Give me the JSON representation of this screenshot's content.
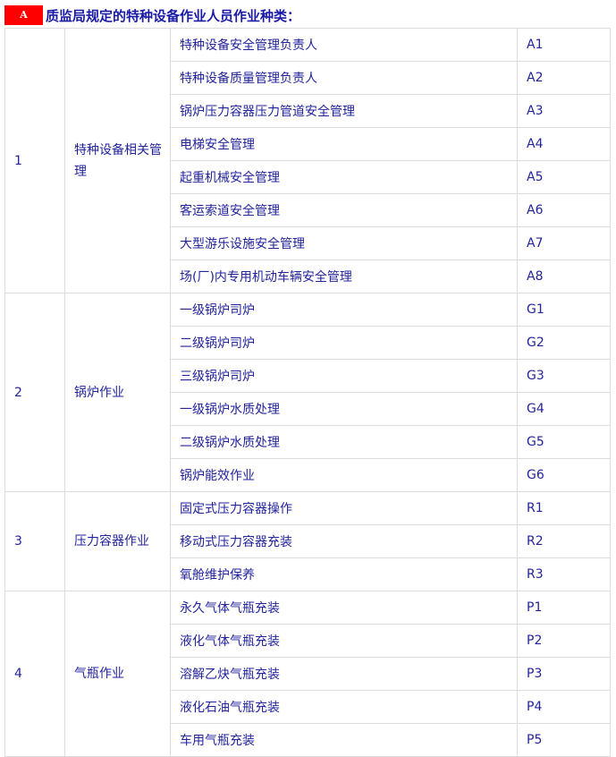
{
  "heading": {
    "badge": "A",
    "title": "质监局规定的特种设备作业人员作业种类：",
    "badge_color": "#ff0000"
  },
  "groups": [
    {
      "no": "1",
      "category": "特种设备相关管理",
      "items": [
        {
          "name": "特种设备安全管理负责人",
          "code": "A1"
        },
        {
          "name": "特种设备质量管理负责人",
          "code": "A2"
        },
        {
          "name": "锅炉压力容器压力管道安全管理",
          "code": "A3"
        },
        {
          "name": "电梯安全管理",
          "code": "A4"
        },
        {
          "name": "起重机械安全管理",
          "code": "A5"
        },
        {
          "name": "客运索道安全管理",
          "code": "A6"
        },
        {
          "name": "大型游乐设施安全管理",
          "code": "A7"
        },
        {
          "name": "场(厂)内专用机动车辆安全管理",
          "code": "A8"
        }
      ]
    },
    {
      "no": "2",
      "category": "锅炉作业",
      "items": [
        {
          "name": "一级锅炉司炉",
          "code": "G1"
        },
        {
          "name": "二级锅炉司炉",
          "code": "G2"
        },
        {
          "name": "三级锅炉司炉",
          "code": "G3"
        },
        {
          "name": "一级锅炉水质处理",
          "code": "G4"
        },
        {
          "name": "二级锅炉水质处理",
          "code": "G5"
        },
        {
          "name": "锅炉能效作业",
          "code": "G6"
        }
      ]
    },
    {
      "no": "3",
      "category": "压力容器作业",
      "items": [
        {
          "name": "固定式压力容器操作",
          "code": "R1"
        },
        {
          "name": "移动式压力容器充装",
          "code": "R2"
        },
        {
          "name": "氧舱维护保养",
          "code": "R3"
        }
      ]
    },
    {
      "no": "4",
      "category": "气瓶作业",
      "items": [
        {
          "name": "永久气体气瓶充装",
          "code": "P1"
        },
        {
          "name": "液化气体气瓶充装",
          "code": "P2"
        },
        {
          "name": "溶解乙炔气瓶充装",
          "code": "P3"
        },
        {
          "name": "液化石油气瓶充装",
          "code": "P4"
        },
        {
          "name": "车用气瓶充装",
          "code": "P5"
        }
      ]
    }
  ]
}
